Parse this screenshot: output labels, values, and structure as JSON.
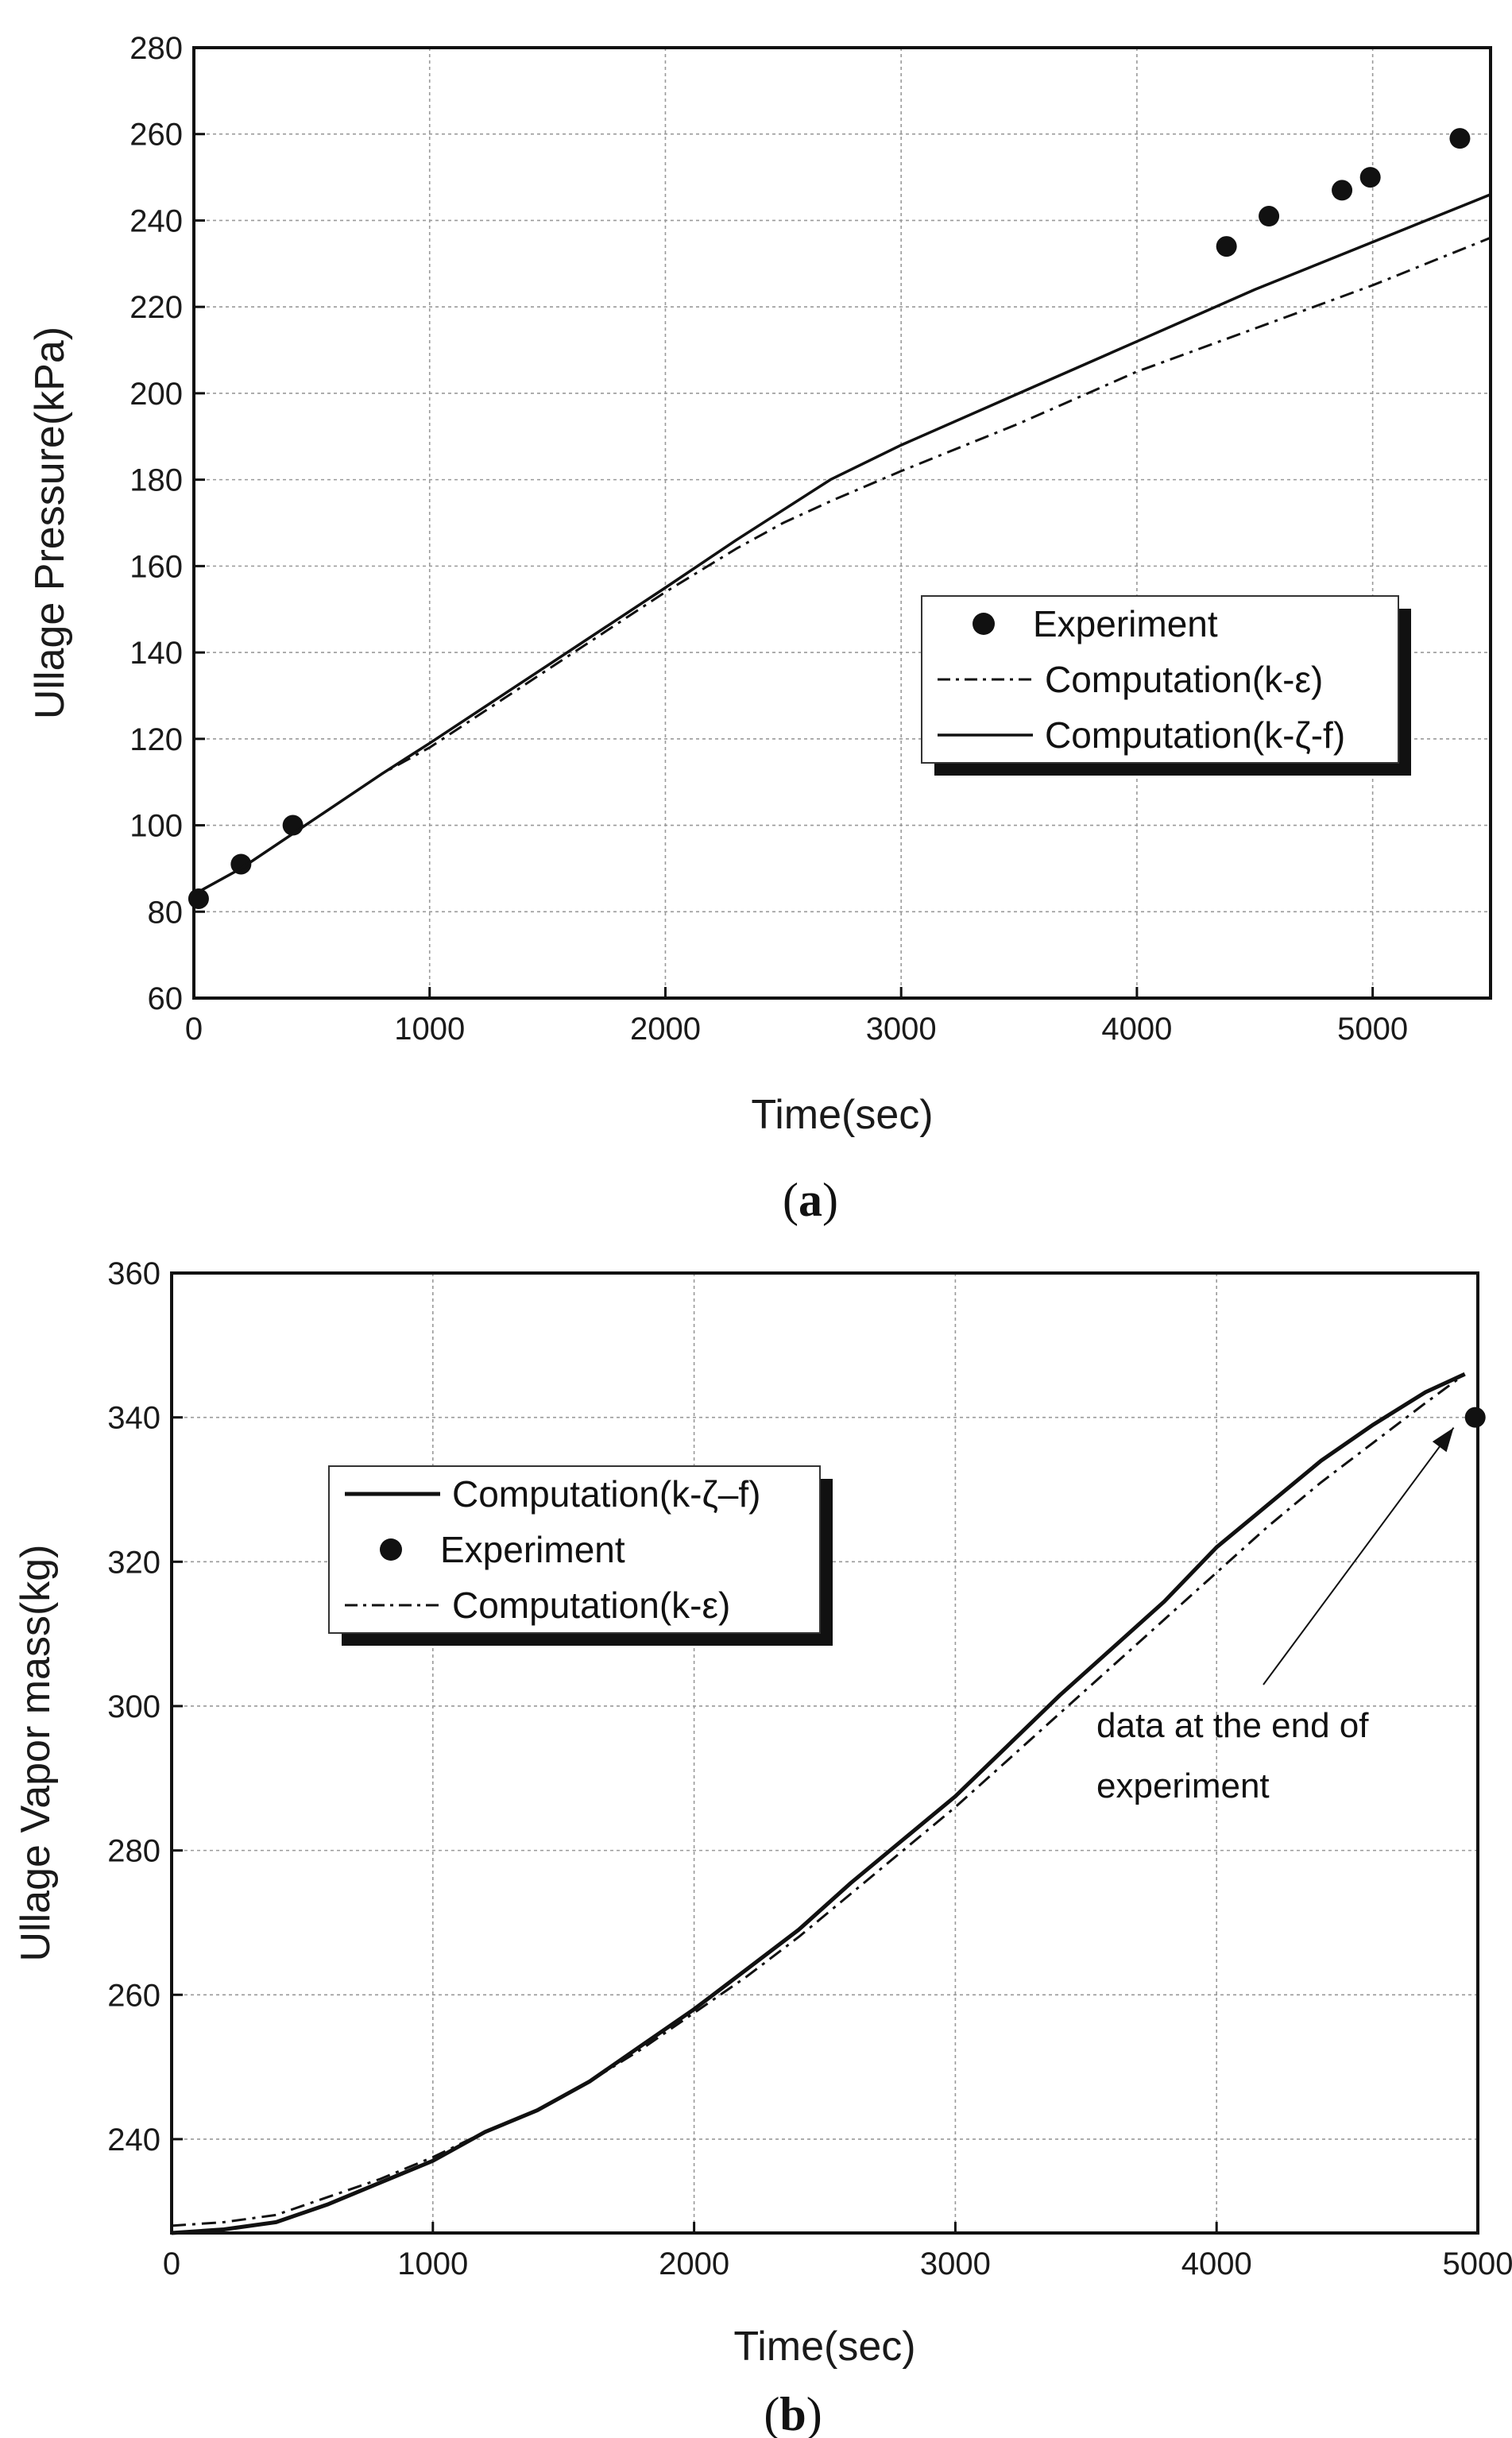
{
  "chart_data": [
    {
      "id": "a",
      "type": "line",
      "panel_label": "a",
      "xlabel": "Time(sec)",
      "ylabel": "Ullage Pressure(kPa)",
      "xlim": [
        0,
        5500
      ],
      "ylim": [
        60,
        280
      ],
      "xticks": [
        0,
        1000,
        2000,
        3000,
        4000,
        5000
      ],
      "yticks": [
        60,
        80,
        100,
        120,
        140,
        160,
        180,
        200,
        220,
        240,
        260,
        280
      ],
      "grid": true,
      "legend_position": "center-right",
      "series": [
        {
          "name": "Experiment",
          "legend_label": "Experiment",
          "kind": "scatter",
          "x": [
            20,
            200,
            420,
            4380,
            4560,
            4870,
            4990,
            5370
          ],
          "y": [
            83,
            91,
            100,
            234,
            241,
            247,
            250,
            259
          ]
        },
        {
          "name": "Computation(k-ε)",
          "legend_label": "Computation(k-ε)",
          "kind": "dashdot",
          "x": [
            0,
            200,
            500,
            800,
            1000,
            1500,
            2000,
            2300,
            2500,
            2700,
            3000,
            3500,
            4000,
            4500,
            5000,
            5500
          ],
          "y": [
            84,
            90,
            101,
            112,
            118,
            136,
            154,
            164,
            170,
            175,
            182,
            193,
            205,
            215,
            225,
            236
          ]
        },
        {
          "name": "Computation(k-ζ-f)",
          "legend_label": "Computation(k-ζ-f)",
          "kind": "solid",
          "x": [
            0,
            200,
            500,
            800,
            1000,
            1500,
            2000,
            2300,
            2500,
            2700,
            3000,
            3500,
            4000,
            4500,
            5000,
            5500
          ],
          "y": [
            84,
            90,
            101,
            112,
            119,
            137,
            155,
            166,
            173,
            180,
            188,
            200,
            212,
            224,
            235,
            246
          ]
        }
      ]
    },
    {
      "id": "b",
      "type": "line",
      "panel_label": "b",
      "xlabel": "Time(sec)",
      "ylabel": "Ullage Vapor mass(kg)",
      "xlim": [
        0,
        5000
      ],
      "ylim": [
        227,
        360
      ],
      "xticks": [
        0,
        1000,
        2000,
        3000,
        4000,
        5000
      ],
      "yticks": [
        240,
        260,
        280,
        300,
        320,
        340,
        360
      ],
      "grid": true,
      "legend_position": "top-left",
      "annotation": {
        "lines": [
          "data at the end of",
          "experiment"
        ],
        "points_to": {
          "x": 4950,
          "y": 341
        }
      },
      "series": [
        {
          "name": "Computation(k-ζ–f)",
          "legend_label": "Computation(k-ζ–f)",
          "kind": "solid",
          "x": [
            0,
            200,
            400,
            600,
            800,
            1000,
            1200,
            1400,
            1600,
            1800,
            2000,
            2200,
            2400,
            2600,
            2800,
            3000,
            3200,
            3400,
            3600,
            3800,
            4000,
            4200,
            4400,
            4600,
            4800,
            4950
          ],
          "y": [
            227,
            227.5,
            228.5,
            231,
            234,
            237,
            241,
            244,
            248,
            253,
            258,
            263.5,
            269,
            275.5,
            281.5,
            287.5,
            294.5,
            301.5,
            308,
            314.5,
            322,
            328,
            334,
            339,
            343.5,
            346
          ]
        },
        {
          "name": "Experiment",
          "legend_label": "Experiment",
          "kind": "scatter",
          "x": [
            4990
          ],
          "y": [
            340
          ]
        },
        {
          "name": "Computation(k-ε)",
          "legend_label": "Computation(k-ε)",
          "kind": "dashdot",
          "x": [
            0,
            200,
            400,
            600,
            800,
            1000,
            1200,
            1400,
            1600,
            1800,
            2000,
            2200,
            2400,
            2600,
            2800,
            3000,
            3200,
            3400,
            3600,
            3800,
            4000,
            4200,
            4400,
            4600,
            4800,
            4950
          ],
          "y": [
            228,
            228.5,
            229.5,
            232,
            234.5,
            237.5,
            241,
            244,
            248,
            252.5,
            257.5,
            262.5,
            268,
            274,
            280,
            286,
            292.5,
            299,
            305.5,
            312,
            318.5,
            325,
            331,
            336.5,
            342,
            346
          ]
        }
      ]
    }
  ]
}
